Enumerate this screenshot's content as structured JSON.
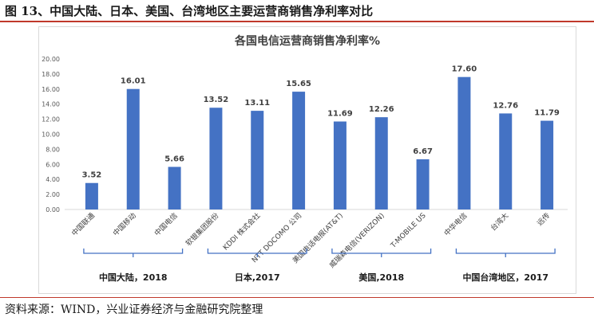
{
  "figure": {
    "title": "图 13、中国大陆、日本、美国、台湾地区主要运营商销售净利率对比",
    "source": "资料来源：WIND，兴业证券经济与金融研究院整理"
  },
  "colors": {
    "bar": "#4472C4",
    "bracket": "#4472C4",
    "axis_text": "#595959",
    "rule": "#c0392b"
  },
  "chart_data": {
    "type": "bar",
    "title": "各国电信运营商销售净利率%",
    "xlabel": "",
    "ylabel": "",
    "ylim": [
      0,
      20
    ],
    "yticks": [
      "0.00",
      "2.00",
      "4.00",
      "6.00",
      "8.00",
      "10.00",
      "12.00",
      "14.00",
      "16.00",
      "18.00",
      "20.00"
    ],
    "grid": false,
    "categories": [
      "中国联通",
      "中国移动",
      "中国电信",
      "软银集团股份",
      "KDDI 株式会社",
      "NTT DOCOMO 公司",
      "美国电话电报(AT&T)",
      "威瑞森电信(VERIZON)",
      "T-MOBILE US",
      "中华电信",
      "台湾大",
      "远传"
    ],
    "values": [
      3.52,
      16.01,
      5.66,
      13.52,
      13.11,
      15.65,
      11.69,
      12.26,
      6.67,
      17.6,
      12.76,
      11.79
    ],
    "value_labels": [
      "3.52",
      "16.01",
      "5.66",
      "13.52",
      "13.11",
      "15.65",
      "11.69",
      "12.26",
      "6.67",
      "17.60",
      "12.76",
      "11.79"
    ],
    "groups": [
      {
        "label": "中国大陆，2018",
        "start": 0,
        "end": 2
      },
      {
        "label": "日本,2017",
        "start": 3,
        "end": 5
      },
      {
        "label": "美国,2018",
        "start": 6,
        "end": 8
      },
      {
        "label": "中国台湾地区，2017",
        "start": 9,
        "end": 11
      }
    ]
  }
}
